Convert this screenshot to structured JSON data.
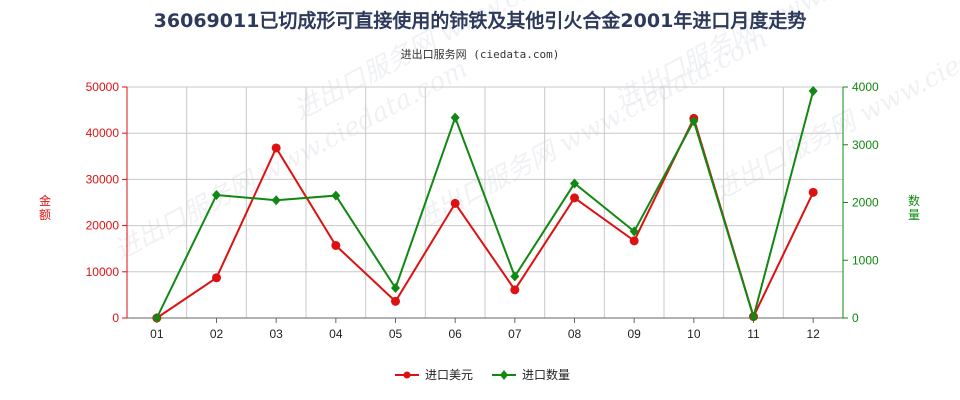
{
  "title": "36069011已切成形可直接使用的铈铁及其他引火合金2001年进口月度走势",
  "subtitle": "进出口服务网 (ciedata.com)",
  "watermark": "进出口服务网 www.ciedata.com",
  "chart_data": {
    "type": "line",
    "categories": [
      "01",
      "02",
      "03",
      "04",
      "05",
      "06",
      "07",
      "08",
      "09",
      "10",
      "11",
      "12"
    ],
    "y_left": {
      "label": "金额",
      "range": [
        0,
        50000
      ],
      "ticks": [
        "0",
        "10000",
        "20000",
        "30000",
        "40000",
        "50000"
      ],
      "color": "#dd1111"
    },
    "y_right": {
      "label": "数量",
      "range": [
        0,
        4000
      ],
      "ticks": [
        "0",
        "1000",
        "2000",
        "3000",
        "4000"
      ],
      "color": "#118811"
    },
    "grid": true,
    "legend_position": "bottom",
    "series": [
      {
        "name": "进口美元",
        "axis": "left",
        "color": "#dd1111",
        "marker": "circle",
        "values": [
          0,
          8700,
          36800,
          15700,
          3600,
          24800,
          6100,
          26000,
          16700,
          43200,
          300,
          27200
        ]
      },
      {
        "name": "进口数量",
        "axis": "right",
        "color": "#118811",
        "marker": "diamond",
        "values": [
          0,
          2130,
          2040,
          2120,
          520,
          3470,
          720,
          2330,
          1500,
          3410,
          20,
          3930
        ]
      }
    ]
  }
}
